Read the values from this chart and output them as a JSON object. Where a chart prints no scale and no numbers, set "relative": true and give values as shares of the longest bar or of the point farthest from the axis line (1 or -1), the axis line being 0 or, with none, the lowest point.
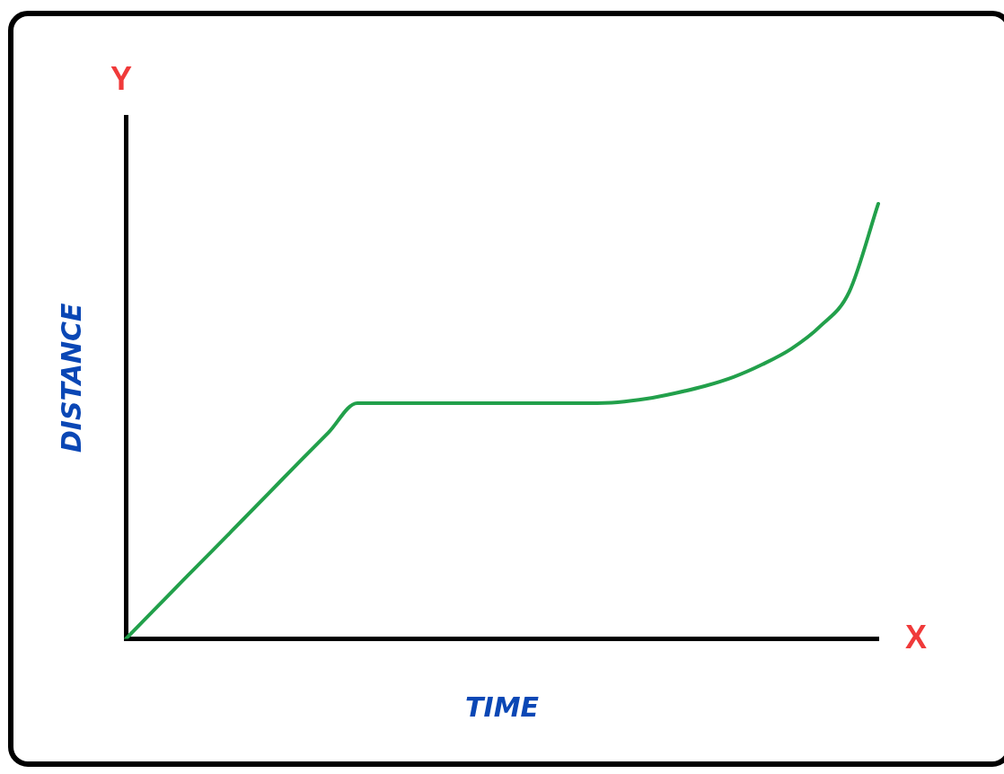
{
  "chart_data": {
    "type": "line",
    "relative": true,
    "xlabel": "TIME",
    "ylabel": "DISTANCE",
    "annotations": [
      "Y",
      "X"
    ],
    "categories": [
      null,
      null,
      null,
      null,
      null,
      null,
      null,
      null,
      null,
      null,
      null,
      null,
      null,
      null,
      null,
      null,
      null,
      null,
      null,
      null,
      null,
      null,
      null,
      null,
      null,
      null,
      null
    ],
    "series": [
      {
        "color": "#22a04b",
        "values": [
          0,
          0.068,
          0.136,
          0.203,
          0.271,
          0.339,
          0.407,
          0.474,
          0.542,
          0.542,
          0.542,
          0.542,
          0.542,
          0.542,
          0.542,
          0.542,
          0.542,
          0.544,
          0.552,
          0.565,
          0.581,
          0.602,
          0.631,
          0.667,
          0.719,
          0.798,
          1
        ]
      }
    ],
    "grid": false,
    "legend": false,
    "marker": "none",
    "line_style": "solid"
  }
}
